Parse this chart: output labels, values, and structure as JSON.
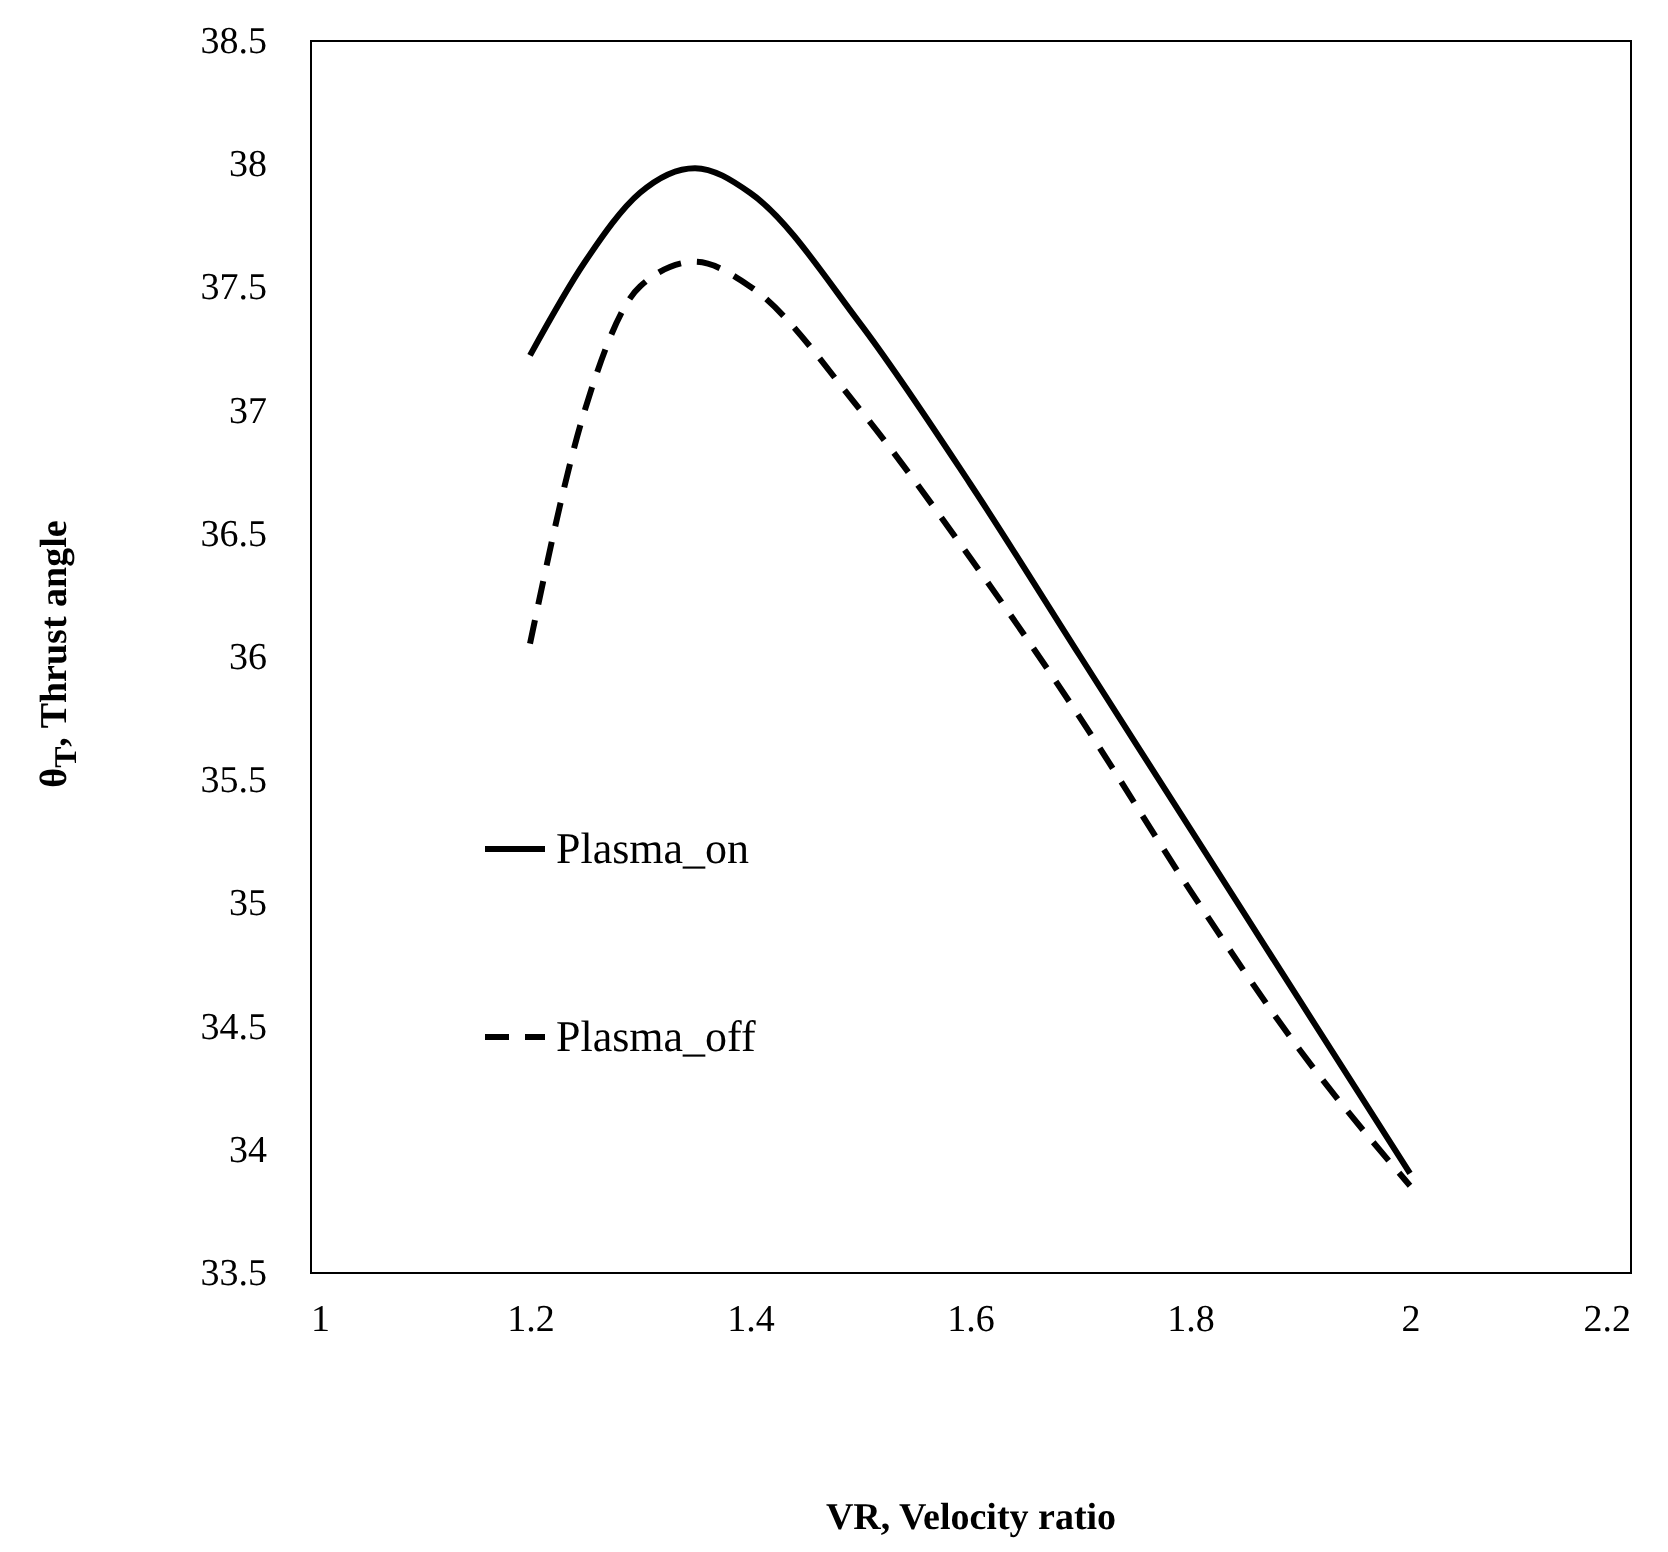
{
  "chart_data": {
    "type": "line",
    "xlabel": "VR, Velocity ratio",
    "ylabel": "θ$_{T}$, Thrust angle",
    "xlim": [
      1,
      2.2
    ],
    "xticks": [
      1,
      1.2,
      1.4,
      1.6,
      1.8,
      2,
      2.2
    ],
    "ylim": [
      33.5,
      38.5
    ],
    "yticks": [
      33.5,
      34,
      34.5,
      35,
      35.5,
      36,
      36.5,
      37,
      37.5,
      38,
      38.5
    ],
    "grid": false,
    "legend": "left",
    "series": [
      {
        "name": "Plasma_on",
        "color": "#000000",
        "line_style": "solid",
        "x": [
          1.2,
          1.25,
          1.3,
          1.35,
          1.4,
          1.5,
          1.6,
          1.7,
          1.8,
          1.9,
          2.0
        ],
        "values": [
          37.22,
          37.6,
          37.88,
          37.98,
          37.88,
          37.35,
          36.7,
          36.0,
          35.3,
          34.6,
          33.9
        ]
      },
      {
        "name": "Plasma_off",
        "color": "#000000",
        "line_style": "dashed",
        "x": [
          1.2,
          1.25,
          1.3,
          1.35,
          1.4,
          1.5,
          1.6,
          1.7,
          1.8,
          1.9,
          2.0
        ],
        "values": [
          36.05,
          37.0,
          37.5,
          37.6,
          37.5,
          37.0,
          36.4,
          35.75,
          35.05,
          34.4,
          33.85
        ]
      }
    ]
  }
}
